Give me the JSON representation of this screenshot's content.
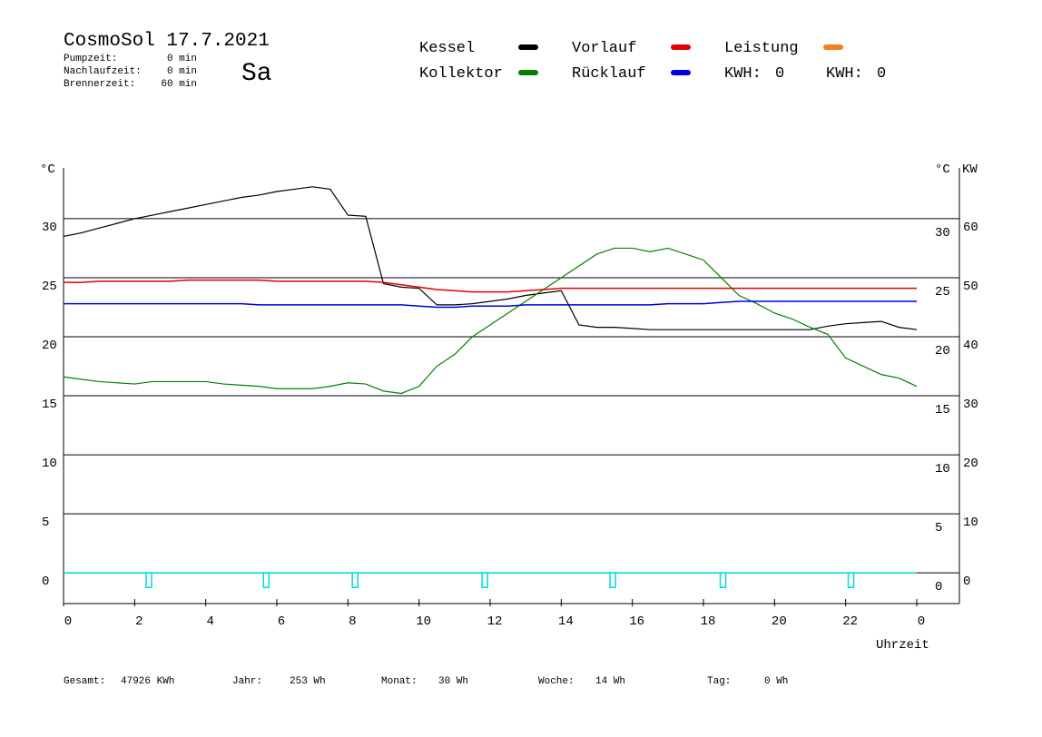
{
  "chart_data": {
    "type": "line",
    "title": "CosmoSol 17.7.2021",
    "day": "Sa",
    "day_color": "#e00000",
    "info": [
      {
        "label": "Pumpzeit:",
        "value": "0 min"
      },
      {
        "label": "Nachlaufzeit:",
        "value": "0 min"
      },
      {
        "label": "Brennerzeit:",
        "value": "60 min"
      }
    ],
    "y_label": "°C",
    "y2_label_c": "°C",
    "y2_label": "KW",
    "y2_color": "#d08000",
    "x_label": "Uhrzeit",
    "x": [
      0,
      0.5,
      1,
      1.5,
      2,
      2.5,
      3,
      3.5,
      4,
      4.5,
      5,
      5.5,
      6,
      6.5,
      7,
      7.5,
      8,
      8.5,
      9,
      9.5,
      10,
      10.5,
      11,
      11.5,
      12,
      12.5,
      13,
      13.5,
      14,
      14.5,
      15,
      15.5,
      16,
      16.5,
      17,
      17.5,
      18,
      18.5,
      19,
      19.5,
      20,
      20.5,
      21,
      21.5,
      22,
      22.5,
      23,
      23.5,
      24
    ],
    "series": [
      {
        "name": "Kessel",
        "color": "#000000",
        "values": [
          28.5,
          28.8,
          29.2,
          29.6,
          30.0,
          30.3,
          30.6,
          30.9,
          31.2,
          31.5,
          31.8,
          32.0,
          32.3,
          32.5,
          32.7,
          32.5,
          30.3,
          30.2,
          24.5,
          24.2,
          24.1,
          22.7,
          22.7,
          22.8,
          23.0,
          23.2,
          23.5,
          23.7,
          23.9,
          21.0,
          20.8,
          20.8,
          20.7,
          20.6,
          20.6,
          20.6,
          20.6,
          20.6,
          20.6,
          20.6,
          20.6,
          20.6,
          20.6,
          20.9,
          21.1,
          21.2,
          21.3,
          20.8,
          20.6
        ]
      },
      {
        "name": "Kollektor",
        "color": "#008000",
        "values": [
          16.6,
          16.4,
          16.2,
          16.1,
          16.0,
          16.2,
          16.2,
          16.2,
          16.2,
          16.0,
          15.9,
          15.8,
          15.6,
          15.6,
          15.6,
          15.8,
          16.1,
          16.0,
          15.4,
          15.2,
          15.8,
          17.5,
          18.5,
          20.0,
          21.0,
          22.0,
          23.0,
          24.0,
          25.0,
          26.0,
          27.0,
          27.5,
          27.5,
          27.2,
          27.5,
          27.0,
          26.5,
          25.0,
          23.5,
          22.8,
          22.0,
          21.5,
          20.8,
          20.2,
          18.2,
          17.5,
          16.8,
          16.5,
          15.8
        ]
      },
      {
        "name": "Vorlauf",
        "color": "#e00000",
        "values": [
          24.6,
          24.6,
          24.7,
          24.7,
          24.7,
          24.7,
          24.7,
          24.8,
          24.8,
          24.8,
          24.8,
          24.8,
          24.7,
          24.7,
          24.7,
          24.7,
          24.7,
          24.7,
          24.6,
          24.4,
          24.2,
          24.0,
          23.9,
          23.8,
          23.8,
          23.8,
          23.9,
          24.0,
          24.1,
          24.1,
          24.1,
          24.1,
          24.1,
          24.1,
          24.1,
          24.1,
          24.1,
          24.1,
          24.1,
          24.1,
          24.1,
          24.1,
          24.1,
          24.1,
          24.1,
          24.1,
          24.1,
          24.1,
          24.1
        ]
      },
      {
        "name": "Rücklauf",
        "color": "#0000e0",
        "values": [
          22.8,
          22.8,
          22.8,
          22.8,
          22.8,
          22.8,
          22.8,
          22.8,
          22.8,
          22.8,
          22.8,
          22.7,
          22.7,
          22.7,
          22.7,
          22.7,
          22.7,
          22.7,
          22.7,
          22.7,
          22.6,
          22.5,
          22.5,
          22.6,
          22.6,
          22.6,
          22.7,
          22.7,
          22.7,
          22.7,
          22.7,
          22.7,
          22.7,
          22.7,
          22.8,
          22.8,
          22.8,
          22.9,
          23.0,
          23.0,
          23.0,
          23.0,
          23.0,
          23.0,
          23.0,
          23.0,
          23.0,
          23.0,
          23.0
        ]
      }
    ],
    "power": {
      "name": "Leistung",
      "color": "#f08020"
    },
    "kwh": [
      {
        "label": "KWH:",
        "value": 0,
        "color": "#e09020"
      },
      {
        "label": "KWH:",
        "value": 0,
        "color": "#8020a0"
      }
    ],
    "pump_markers": {
      "color": "#00d8e0",
      "x": [
        2.4,
        5.7,
        8.2,
        11.85,
        15.45,
        18.55,
        22.15
      ]
    },
    "xlim": [
      0,
      25.2
    ],
    "xticks": [
      0,
      2,
      4,
      6,
      8,
      10,
      12,
      14,
      16,
      18,
      20,
      22,
      {
        "value": 24,
        "label": "0"
      }
    ],
    "ylim": [
      -2.6,
      34.3
    ],
    "yticks": [
      0,
      5,
      10,
      15,
      20,
      25,
      30
    ],
    "y2lim": [
      -5.2,
      68.6
    ],
    "y2ticks": [
      0,
      10,
      20,
      30,
      40,
      50,
      60
    ],
    "grid": true,
    "footer": [
      {
        "label": "Gesamt:",
        "value": "47926 KWh"
      },
      {
        "label": "Jahr:",
        "value": "253 Wh"
      },
      {
        "label": "Monat:",
        "value": "30 Wh"
      },
      {
        "label": "Woche:",
        "value": "14 Wh"
      },
      {
        "label": "Tag:",
        "value": "0 Wh"
      }
    ]
  }
}
